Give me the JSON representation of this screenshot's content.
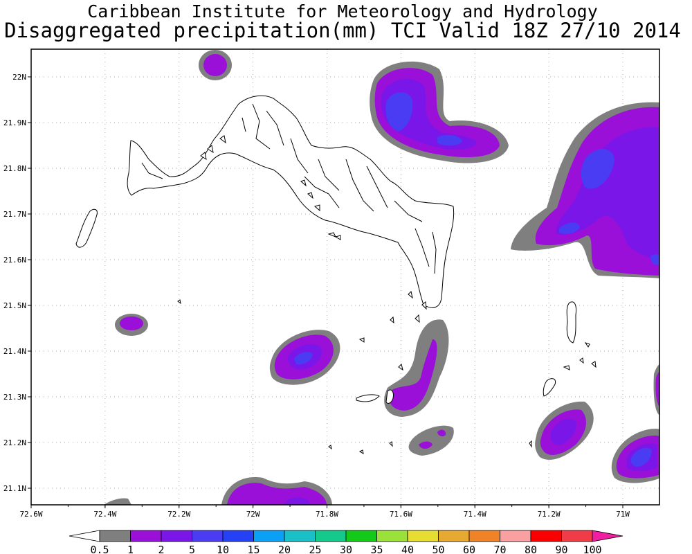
{
  "map": {
    "title_line1": "Caribbean Institute for Meteorology and Hydrology",
    "title_line2": "Disaggregated precipitation(mm) TCI Valid 18Z 27/10 2014",
    "lat_labels": [
      "22N",
      "21.9N",
      "21.8N",
      "21.7N",
      "21.6N",
      "21.5N",
      "21.4N",
      "21.3N",
      "21.2N",
      "21.1N"
    ],
    "lon_labels": [
      "72.6W",
      "72.4W",
      "72.2W",
      "72W",
      "71.8W",
      "71.6W",
      "71.4W",
      "71.2W",
      "71W"
    ],
    "lat_values": [
      22.0,
      21.9,
      21.8,
      21.7,
      21.6,
      21.5,
      21.4,
      21.3,
      21.2,
      21.1
    ],
    "lon_values": [
      -72.6,
      -72.4,
      -72.2,
      -72.0,
      -71.8,
      -71.6,
      -71.4,
      -71.2,
      -71.0
    ],
    "grid": true,
    "colors": {
      "precip_grey": "#7f7f7f",
      "precip_purple": "#9a10d8",
      "precip_violet": "#7a16e8",
      "precip_blue": "#4a3cf2",
      "land_outline": "#000000"
    }
  },
  "legend": {
    "levels": [
      "0.5",
      "1",
      "2",
      "5",
      "10",
      "15",
      "20",
      "25",
      "30",
      "35",
      "40",
      "50",
      "60",
      "70",
      "80",
      "90",
      "100"
    ],
    "colors": [
      "#ffffff",
      "#7f7f7f",
      "#9a10d8",
      "#7a16e8",
      "#4a3cf2",
      "#2541f6",
      "#0aa0f5",
      "#19c0c8",
      "#13c98c",
      "#13c91a",
      "#9ae13a",
      "#e6dc32",
      "#e6aa32",
      "#f08228",
      "#faa0a0",
      "#fa0000",
      "#f03c46",
      "#f01ea0"
    ]
  }
}
